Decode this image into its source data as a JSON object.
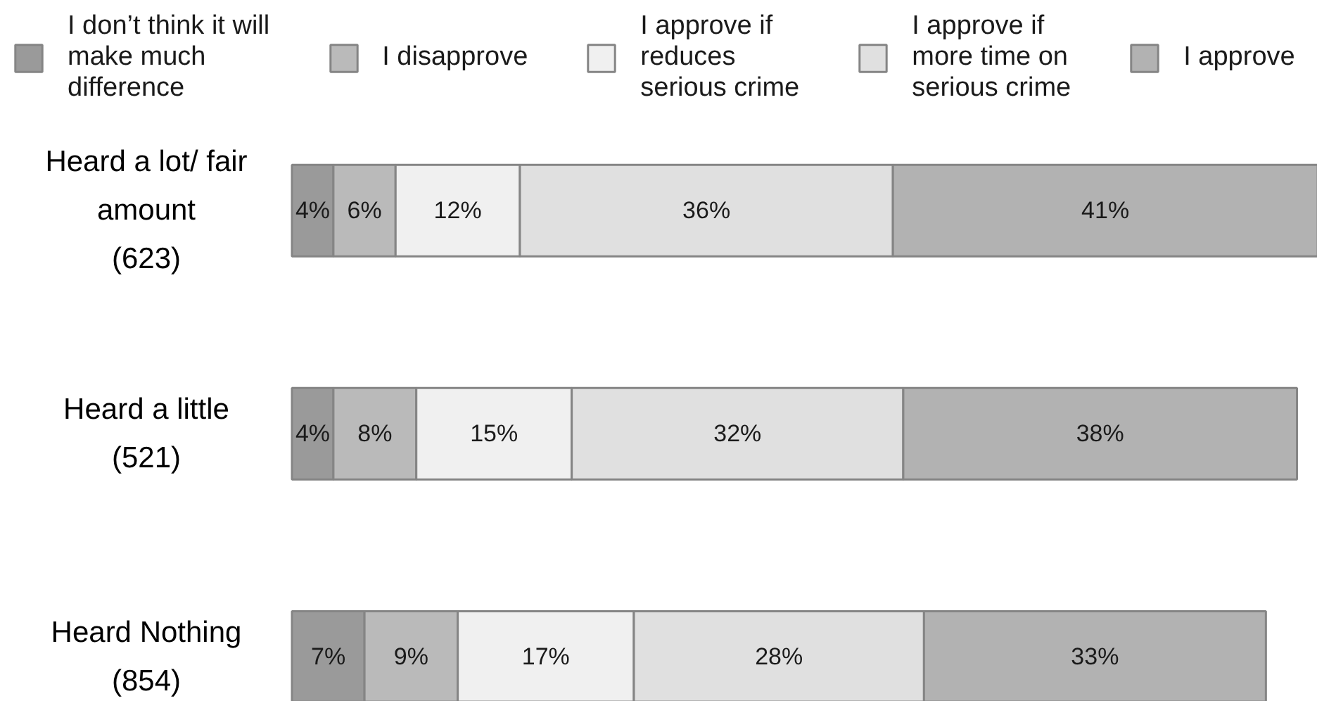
{
  "chart_data": {
    "type": "bar",
    "orientation": "horizontal",
    "stacked": true,
    "legend": "top",
    "categories": [
      "Heard a lot/ fair\namount\n(623)",
      "Heard a little\n(521)",
      "Heard Nothing\n(854)"
    ],
    "series": [
      {
        "name": "I don’t think it will\nmake much\ndifference",
        "color": "#9a9a9a",
        "values": [
          4,
          4,
          7
        ],
        "value_labels": [
          "4%",
          "4%",
          "7%"
        ]
      },
      {
        "name": "I disapprove",
        "color": "#bababa",
        "values": [
          6,
          8,
          9
        ],
        "value_labels": [
          "6%",
          "8%",
          "9%"
        ]
      },
      {
        "name": "I approve if\nreduces\nserious crime",
        "color": "#f0f0f0",
        "values": [
          12,
          15,
          17
        ],
        "value_labels": [
          "12%",
          "15%",
          "17%"
        ]
      },
      {
        "name": "I approve if\nmore time on\nserious crime",
        "color": "#e0e0e0",
        "values": [
          36,
          32,
          28
        ],
        "value_labels": [
          "36%",
          "32%",
          "28%"
        ]
      },
      {
        "name": "I approve",
        "color": "#b2b2b2",
        "values": [
          41,
          38,
          33
        ],
        "value_labels": [
          "41%",
          "38%",
          "33%"
        ]
      }
    ]
  }
}
